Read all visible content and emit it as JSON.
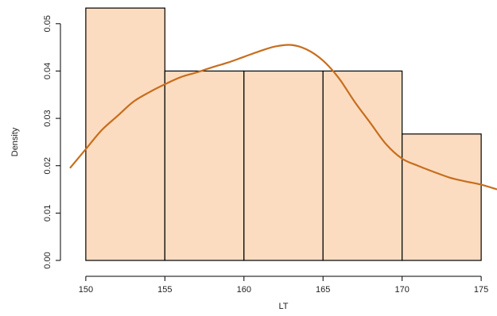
{
  "chart_data": {
    "type": "bar",
    "subtype": "histogram-with-density-curve",
    "title": "",
    "xlabel": "LT",
    "ylabel": "Density",
    "xlim": [
      149,
      176
    ],
    "ylim": [
      0,
      0.055
    ],
    "x_ticks": [
      150,
      155,
      160,
      165,
      170,
      175
    ],
    "x_tick_labels": [
      "150",
      "155",
      "160",
      "165",
      "170",
      "175"
    ],
    "y_ticks": [
      0,
      0.01,
      0.02,
      0.03,
      0.04,
      0.05
    ],
    "y_tick_labels": [
      "0.00",
      "0.01",
      "0.02",
      "0.03",
      "0.04",
      "0.05"
    ],
    "bins": [
      {
        "x0": 150,
        "x1": 155,
        "value": 0.0533
      },
      {
        "x0": 155,
        "x1": 160,
        "value": 0.04
      },
      {
        "x0": 160,
        "x1": 165,
        "value": 0.04
      },
      {
        "x0": 165,
        "x1": 170,
        "value": 0.04
      },
      {
        "x0": 170,
        "x1": 175,
        "value": 0.0267
      }
    ],
    "density_curve": {
      "x": [
        149,
        150,
        151,
        152,
        153,
        154,
        155,
        156,
        157,
        158,
        159,
        160,
        161,
        162,
        163,
        164,
        165,
        166,
        167,
        168,
        169,
        170,
        171,
        172,
        173,
        174,
        175,
        176
      ],
      "y": [
        0.0195,
        0.0235,
        0.0275,
        0.0305,
        0.0335,
        0.0355,
        0.0372,
        0.0387,
        0.0397,
        0.0408,
        0.0418,
        0.043,
        0.0442,
        0.0452,
        0.0455,
        0.0445,
        0.0422,
        0.0385,
        0.0335,
        0.029,
        0.0245,
        0.0215,
        0.02,
        0.0187,
        0.0175,
        0.0167,
        0.016,
        0.015
      ]
    },
    "grid": false,
    "colors": {
      "bar_fill": "#fcdcc0",
      "bar_stroke": "#000000",
      "curve": "#c76e1e",
      "axis": "#000000"
    }
  }
}
